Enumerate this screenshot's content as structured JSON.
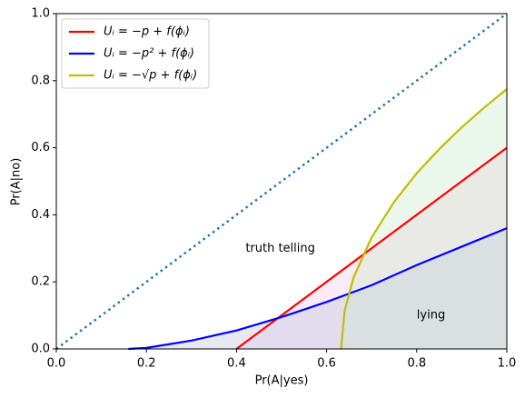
{
  "chart_data": {
    "type": "line",
    "xlabel": "Pr(A|yes)",
    "ylabel": "Pr(A|no)",
    "xlim": [
      0,
      1
    ],
    "ylim": [
      0,
      1
    ],
    "xticks": [
      {
        "value": 0,
        "label": "0.0"
      },
      {
        "value": 0.2,
        "label": "0.2"
      },
      {
        "value": 0.4,
        "label": "0.4"
      },
      {
        "value": 0.6,
        "label": "0.6"
      },
      {
        "value": 0.8,
        "label": "0.8"
      },
      {
        "value": 1,
        "label": "1.0"
      }
    ],
    "yticks": [
      {
        "value": 0,
        "label": "0.0"
      },
      {
        "value": 0.2,
        "label": "0.2"
      },
      {
        "value": 0.4,
        "label": "0.4"
      },
      {
        "value": 0.6,
        "label": "0.6"
      },
      {
        "value": 0.8,
        "label": "0.8"
      },
      {
        "value": 1,
        "label": "1.0"
      }
    ],
    "legend": "upper left",
    "series": [
      {
        "name": "Uᵢ = −p + f(ϕᵢ)",
        "color": "#ff0000",
        "fill": "#f4c6e6",
        "x": [
          0.4,
          1.0
        ],
        "values": [
          0,
          0.6
        ]
      },
      {
        "name": "Uᵢ = −p² + f(ϕᵢ)",
        "color": "#0000ff",
        "fill": "#b8c0e0",
        "x": [
          0.16,
          0.2,
          0.3,
          0.4,
          0.5,
          0.6,
          0.7,
          0.8,
          0.9,
          1.0
        ],
        "values": [
          0,
          0.003,
          0.025,
          0.055,
          0.095,
          0.14,
          0.19,
          0.25,
          0.305,
          0.36
        ]
      },
      {
        "name": "Uᵢ = −√p + f(ϕᵢ)",
        "color": "#bfbf00",
        "fill": "#c8e8c8",
        "x": [
          0.632,
          0.64,
          0.66,
          0.7,
          0.75,
          0.8,
          0.85,
          0.9,
          0.95,
          1.0
        ],
        "values": [
          0,
          0.114,
          0.214,
          0.333,
          0.439,
          0.524,
          0.596,
          0.661,
          0.72,
          0.775
        ]
      }
    ],
    "diagonal": {
      "color": "#1f77b4",
      "x": [
        0,
        1
      ],
      "values": [
        0,
        1
      ]
    },
    "annotations": [
      "truth telling",
      "lying"
    ]
  }
}
